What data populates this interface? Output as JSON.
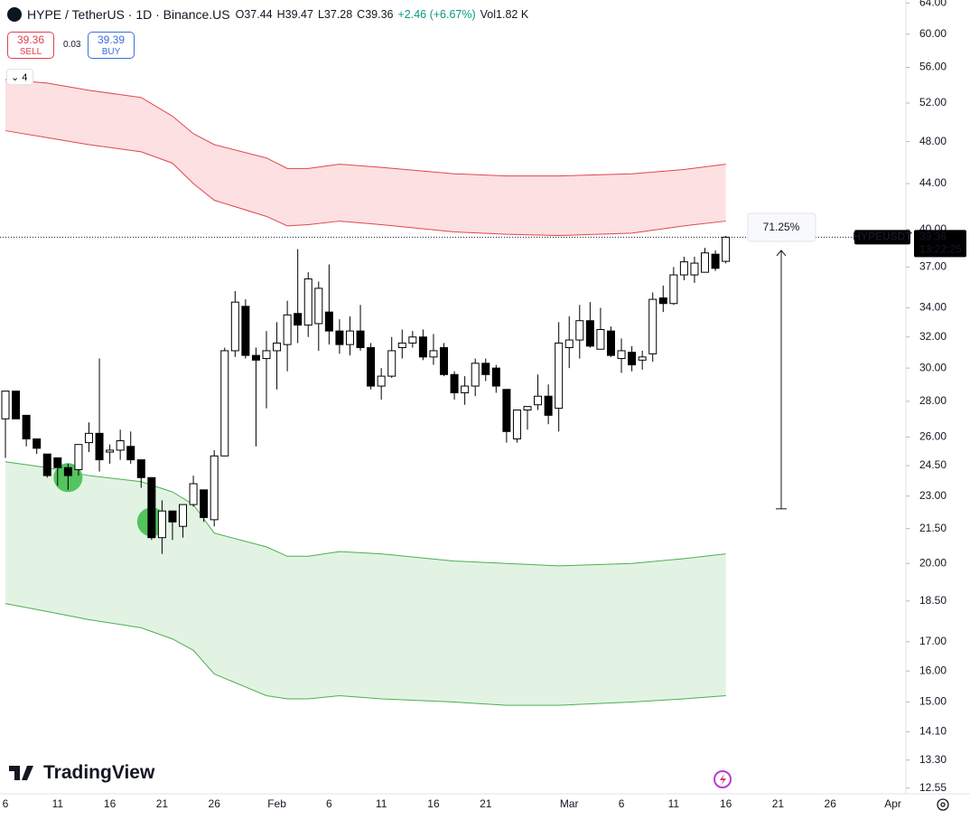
{
  "brand": "TradingView",
  "indicators_count": 4,
  "order_panel": {
    "sell_price": 39.36,
    "sell_label": "SELL",
    "spread": 0.03,
    "buy_price": 39.39,
    "buy_label": "BUY"
  },
  "chart_data": {
    "type": "candlestick",
    "title": "HYPE / TetherUS · 1D · Binance.US",
    "legend_values": [
      "O37.44",
      "H39.47",
      "L37.28",
      "C39.36",
      "+2.46 (+6.67%)",
      "Vol1.82 K"
    ],
    "categories": [
      "6",
      null,
      null,
      null,
      null,
      "11",
      null,
      null,
      null,
      null,
      "16",
      null,
      null,
      null,
      null,
      "21",
      null,
      null,
      null,
      null,
      "26",
      null,
      null,
      null,
      null,
      null,
      "Feb",
      null,
      null,
      null,
      null,
      "6",
      null,
      null,
      null,
      null,
      "11",
      null,
      null,
      null,
      null,
      "16",
      null,
      null,
      null,
      null,
      "21",
      null,
      null,
      null,
      null,
      null,
      null,
      null,
      "Mar",
      null,
      null,
      null,
      null,
      "6",
      null,
      null,
      null,
      null,
      "11",
      null,
      null,
      null,
      null,
      "16",
      null,
      null,
      null,
      null,
      "21",
      null,
      null,
      null,
      null,
      "26",
      null,
      null,
      null,
      null,
      null,
      "Apr"
    ],
    "open": [
      27.0,
      28.6,
      27.2,
      25.9,
      25.1,
      24.9,
      24.4,
      24.3,
      25.7,
      26.2,
      25.2,
      25.3,
      25.5,
      24.8,
      23.9,
      21.1,
      22.3,
      21.6,
      22.6,
      23.3,
      21.9,
      25.0,
      31.1,
      34.1,
      30.8,
      30.6,
      31.1,
      31.5,
      33.6,
      32.8,
      32.9,
      33.7,
      32.4,
      31.5,
      32.4,
      31.3,
      28.9,
      29.5,
      31.3,
      31.6,
      32.0,
      30.7,
      31.3,
      29.6,
      28.5,
      28.9,
      30.3,
      30.0,
      28.7,
      25.9,
      27.5,
      27.8,
      28.3,
      27.6,
      31.3,
      31.8,
      33.1,
      31.2,
      32.4,
      30.6,
      31.0,
      30.5,
      30.9,
      34.7,
      34.3,
      36.4,
      36.4,
      36.6,
      38.0,
      37.44,
      null,
      null,
      null,
      null,
      null,
      null,
      null,
      null,
      null,
      null,
      null,
      null,
      null,
      null,
      null,
      null
    ],
    "high": [
      28.6,
      28.6,
      27.2,
      25.9,
      25.1,
      24.9,
      24.6,
      25.6,
      26.8,
      30.6,
      25.6,
      26.4,
      26.3,
      24.8,
      23.9,
      22.8,
      22.3,
      22.6,
      24.0,
      23.3,
      25.3,
      31.3,
      35.2,
      34.6,
      31.3,
      32.4,
      33.0,
      34.5,
      38.4,
      36.6,
      35.9,
      37.2,
      33.2,
      33.4,
      34.2,
      31.6,
      30.0,
      32.0,
      32.5,
      32.4,
      32.5,
      32.2,
      31.6,
      29.8,
      29.5,
      30.6,
      30.6,
      30.2,
      28.7,
      27.5,
      27.7,
      29.6,
      29.0,
      33.0,
      33.4,
      34.2,
      34.4,
      34.0,
      32.7,
      31.9,
      31.4,
      31.1,
      35.1,
      35.6,
      37.0,
      37.8,
      37.8,
      38.5,
      38.3,
      39.47,
      null,
      null,
      null,
      null,
      null,
      null,
      null,
      null,
      null,
      null,
      null,
      null,
      null,
      null,
      null,
      null
    ],
    "low": [
      24.9,
      27.0,
      25.5,
      25.1,
      23.9,
      23.5,
      23.3,
      24.0,
      25.2,
      24.2,
      24.6,
      24.8,
      24.6,
      23.4,
      21.0,
      20.4,
      21.0,
      21.1,
      22.5,
      21.8,
      21.6,
      25.0,
      30.7,
      30.6,
      25.5,
      27.6,
      28.7,
      29.8,
      31.6,
      32.0,
      31.1,
      31.5,
      30.9,
      30.8,
      31.1,
      28.7,
      28.1,
      29.4,
      30.6,
      31.3,
      30.5,
      30.2,
      29.5,
      28.1,
      27.8,
      28.3,
      29.2,
      28.5,
      25.7,
      25.7,
      26.4,
      27.5,
      26.7,
      26.3,
      30.0,
      30.6,
      31.3,
      31.2,
      30.7,
      29.7,
      29.8,
      29.9,
      30.4,
      33.7,
      34.2,
      36.0,
      35.8,
      36.6,
      36.7,
      37.28,
      null,
      null,
      null,
      null,
      null,
      null,
      null,
      null,
      null,
      null,
      null,
      null,
      null,
      null,
      null,
      null
    ],
    "close": [
      28.6,
      27.0,
      25.9,
      25.4,
      24.0,
      24.4,
      24.0,
      25.6,
      26.2,
      24.8,
      25.3,
      25.8,
      24.8,
      23.9,
      21.1,
      22.3,
      21.8,
      22.6,
      23.6,
      22.0,
      25.0,
      31.1,
      34.4,
      30.8,
      30.5,
      31.1,
      31.6,
      33.5,
      32.8,
      36.1,
      35.4,
      32.4,
      31.5,
      32.4,
      31.3,
      28.9,
      29.5,
      31.1,
      31.6,
      32.0,
      30.7,
      31.1,
      29.6,
      28.5,
      28.9,
      30.3,
      29.6,
      28.9,
      26.3,
      27.5,
      27.7,
      28.3,
      27.2,
      31.6,
      31.8,
      33.1,
      31.4,
      32.5,
      30.8,
      31.1,
      30.2,
      30.7,
      34.6,
      34.3,
      36.4,
      37.4,
      37.3,
      38.1,
      36.9,
      39.36,
      null,
      null,
      null,
      null,
      null,
      null,
      null,
      null,
      null,
      null,
      null,
      null,
      null,
      null,
      null,
      null
    ],
    "up_color": "#ffffff",
    "down_color": "#000000",
    "log_scale": true,
    "ylim": [
      12.4,
      64.4
    ],
    "yticks": [
      {
        "value": 64,
        "label": "64.00"
      },
      {
        "value": 60,
        "label": "60.00"
      },
      {
        "value": 56,
        "label": "56.00"
      },
      {
        "value": 52,
        "label": "52.00"
      },
      {
        "value": 48,
        "label": "48.00"
      },
      {
        "value": 44,
        "label": "44.00"
      },
      {
        "value": 40,
        "label": "40.00"
      },
      {
        "value": 37,
        "label": "37.00"
      },
      {
        "value": 34,
        "label": "34.00"
      },
      {
        "value": 32,
        "label": "32.00"
      },
      {
        "value": 30,
        "label": "30.00"
      },
      {
        "value": 28,
        "label": "28.00"
      },
      {
        "value": 26,
        "label": "26.00"
      },
      {
        "value": 24.5,
        "label": "24.50"
      },
      {
        "value": 23,
        "label": "23.00"
      },
      {
        "value": 21.5,
        "label": "21.50"
      },
      {
        "value": 20,
        "label": "20.00"
      },
      {
        "value": 18.5,
        "label": "18.50"
      },
      {
        "value": 17,
        "label": "17.00"
      },
      {
        "value": 16,
        "label": "16.00"
      },
      {
        "value": 15,
        "label": "15.00"
      },
      {
        "value": 14.1,
        "label": "14.10"
      },
      {
        "value": 13.3,
        "label": "13.30"
      },
      {
        "value": 12.55,
        "label": "12.55"
      }
    ],
    "bands": {
      "x": [
        0,
        4,
        8,
        13,
        16,
        18,
        20,
        25,
        27,
        29,
        32,
        36,
        43,
        48,
        53,
        60,
        65,
        69
      ],
      "series": [
        {
          "color": "#e0474c",
          "fill": "#fde0e2",
          "upper": [
            54.6,
            54.2,
            53.4,
            52.6,
            50.6,
            48.8,
            47.7,
            46.4,
            45.4,
            45.4,
            45.8,
            45.5,
            44.9,
            44.7,
            44.7,
            44.9,
            45.3,
            45.8
          ],
          "lower": [
            49.1,
            48.4,
            47.7,
            47.0,
            45.9,
            44.0,
            42.5,
            41.1,
            40.3,
            40.4,
            40.7,
            40.4,
            39.8,
            39.6,
            39.5,
            39.7,
            40.3,
            40.7
          ]
        },
        {
          "color": "#4caf50",
          "fill": "#e2f3e3",
          "upper": [
            24.7,
            24.4,
            24.0,
            23.7,
            23.2,
            22.6,
            21.3,
            20.7,
            20.3,
            20.3,
            20.5,
            20.4,
            20.1,
            20.0,
            19.9,
            20.0,
            20.2,
            20.4
          ],
          "lower": [
            18.4,
            18.1,
            17.8,
            17.5,
            17.1,
            16.7,
            15.9,
            15.2,
            15.1,
            15.1,
            15.2,
            15.1,
            15.0,
            14.9,
            14.9,
            15.0,
            15.1,
            15.2
          ]
        }
      ]
    },
    "markers": {
      "x": [
        6,
        14
      ],
      "values": [
        23.9,
        21.8
      ],
      "color": "#4cc157"
    },
    "measure": {
      "label": "71.25%",
      "from": 22.4,
      "to": 38.3
    },
    "last_price_label": "HYPEUSDT",
    "countdown": "13:22:25"
  }
}
